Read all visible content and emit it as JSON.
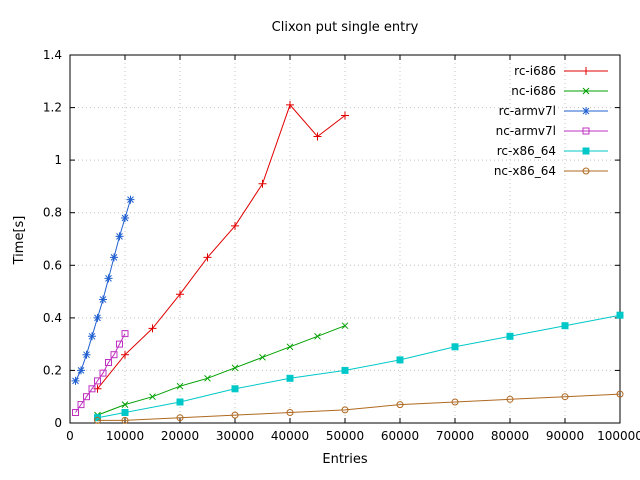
{
  "chart_data": {
    "type": "line",
    "title": "Clixon put single entry",
    "xlabel": "Entries",
    "ylabel": "Time[s]",
    "xlim": [
      0,
      100000
    ],
    "ylim": [
      0,
      1.4
    ],
    "xticks": [
      0,
      10000,
      20000,
      30000,
      40000,
      50000,
      60000,
      70000,
      80000,
      90000,
      100000
    ],
    "yticks": [
      0,
      0.2,
      0.4,
      0.6,
      0.8,
      1,
      1.2,
      1.4
    ],
    "grid": true,
    "grid_color": "#c4c4c4",
    "legend_position": "top-right-inside",
    "series": [
      {
        "name": "rc-i686",
        "color": "#e00000",
        "marker": "plus",
        "points": [
          [
            5000,
            0.13
          ],
          [
            10000,
            0.26
          ],
          [
            15000,
            0.36
          ],
          [
            20000,
            0.49
          ],
          [
            25000,
            0.63
          ],
          [
            30000,
            0.75
          ],
          [
            35000,
            0.91
          ],
          [
            40000,
            1.21
          ],
          [
            45000,
            1.09
          ],
          [
            50000,
            1.17
          ]
        ]
      },
      {
        "name": "nc-i686",
        "color": "#00a000",
        "marker": "cross",
        "points": [
          [
            5000,
            0.03
          ],
          [
            10000,
            0.07
          ],
          [
            15000,
            0.1
          ],
          [
            20000,
            0.14
          ],
          [
            25000,
            0.17
          ],
          [
            30000,
            0.21
          ],
          [
            35000,
            0.25
          ],
          [
            40000,
            0.29
          ],
          [
            45000,
            0.33
          ],
          [
            50000,
            0.37
          ]
        ]
      },
      {
        "name": "rc-armv7l",
        "color": "#2060d0",
        "marker": "asterisk",
        "points": [
          [
            1000,
            0.16
          ],
          [
            2000,
            0.2
          ],
          [
            3000,
            0.26
          ],
          [
            4000,
            0.33
          ],
          [
            5000,
            0.4
          ],
          [
            6000,
            0.47
          ],
          [
            7000,
            0.55
          ],
          [
            8000,
            0.63
          ],
          [
            9000,
            0.71
          ],
          [
            10000,
            0.78
          ],
          [
            11000,
            0.85
          ]
        ]
      },
      {
        "name": "nc-armv7l",
        "color": "#c030c0",
        "marker": "square-open",
        "points": [
          [
            1000,
            0.04
          ],
          [
            2000,
            0.07
          ],
          [
            3000,
            0.1
          ],
          [
            4000,
            0.13
          ],
          [
            5000,
            0.16
          ],
          [
            6000,
            0.19
          ],
          [
            7000,
            0.23
          ],
          [
            8000,
            0.26
          ],
          [
            9000,
            0.3
          ],
          [
            10000,
            0.34
          ]
        ]
      },
      {
        "name": "rc-x86_64",
        "color": "#00c8c8",
        "marker": "square-filled",
        "points": [
          [
            5000,
            0.02
          ],
          [
            10000,
            0.04
          ],
          [
            20000,
            0.08
          ],
          [
            30000,
            0.13
          ],
          [
            40000,
            0.17
          ],
          [
            50000,
            0.2
          ],
          [
            60000,
            0.24
          ],
          [
            70000,
            0.29
          ],
          [
            80000,
            0.33
          ],
          [
            90000,
            0.37
          ],
          [
            100000,
            0.41
          ]
        ]
      },
      {
        "name": "nc-x86_64",
        "color": "#b06820",
        "marker": "circle-open",
        "points": [
          [
            5000,
            0.01
          ],
          [
            10000,
            0.01
          ],
          [
            20000,
            0.02
          ],
          [
            30000,
            0.03
          ],
          [
            40000,
            0.04
          ],
          [
            50000,
            0.05
          ],
          [
            60000,
            0.07
          ],
          [
            70000,
            0.08
          ],
          [
            80000,
            0.09
          ],
          [
            90000,
            0.1
          ],
          [
            100000,
            0.11
          ]
        ]
      }
    ]
  }
}
